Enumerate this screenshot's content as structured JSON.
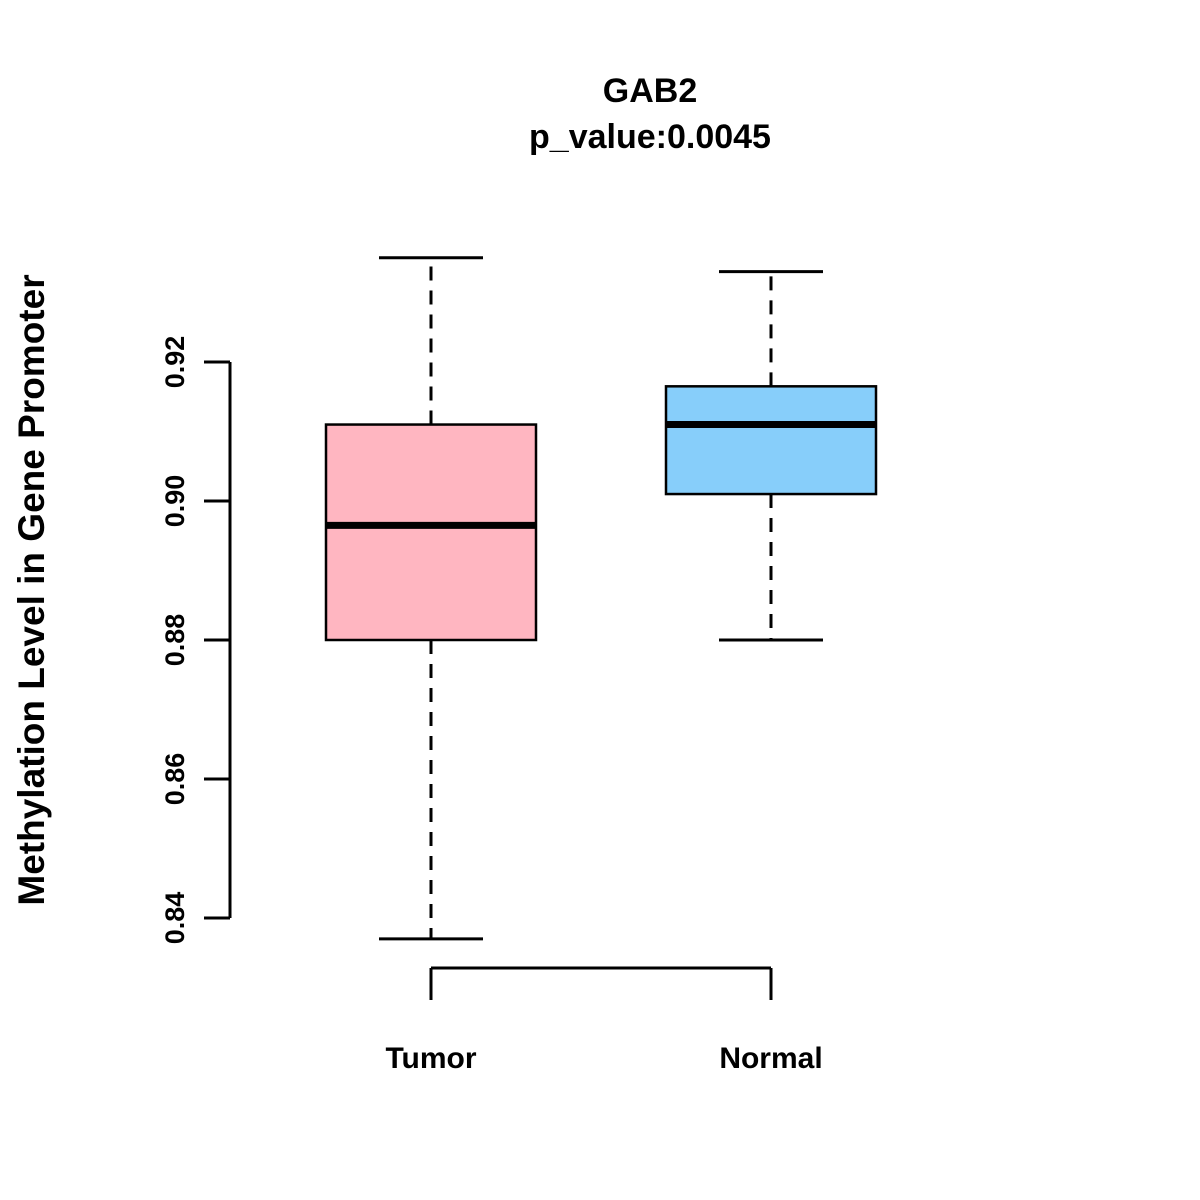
{
  "title": "GAB2",
  "subtitle": "p_value:0.0045",
  "y_axis": {
    "label": "Methylation Level in Gene Promoter",
    "tick_labels": [
      "0.84",
      "0.86",
      "0.88",
      "0.90",
      "0.92"
    ],
    "tick_values": [
      0.84,
      0.86,
      0.88,
      0.9,
      0.92
    ]
  },
  "x_axis": {
    "categories": [
      "Tumor",
      "Normal"
    ]
  },
  "chart_data": {
    "type": "boxplot",
    "title": "GAB2",
    "subtitle": "p_value:0.0045",
    "ylabel": "Methylation Level in Gene Promoter",
    "xlabel": "",
    "categories": [
      "Tumor",
      "Normal"
    ],
    "ylim": [
      0.837,
      0.935
    ],
    "y_ticks": [
      0.84,
      0.86,
      0.88,
      0.9,
      0.92
    ],
    "series": [
      {
        "name": "Tumor",
        "lower_whisker": 0.837,
        "q1": 0.88,
        "median": 0.8965,
        "q3": 0.911,
        "upper_whisker": 0.935,
        "color": "#FFB6C1"
      },
      {
        "name": "Normal",
        "lower_whisker": 0.88,
        "q1": 0.901,
        "median": 0.911,
        "q3": 0.9165,
        "upper_whisker": 0.933,
        "color": "#87CEFA"
      }
    ],
    "colors": {
      "tumor_box": "#FFB6C1",
      "normal_box": "#87CEFA",
      "axis": "#000000"
    }
  }
}
